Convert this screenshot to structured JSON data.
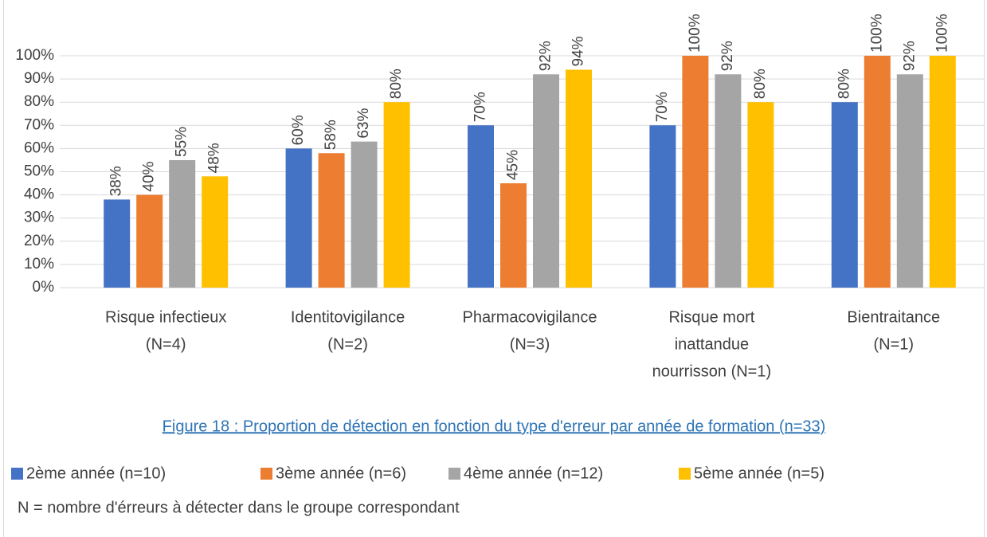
{
  "chart_data": {
    "type": "bar",
    "title": "Figure 18 : Proportion de détection en fonction du type d'erreur par année de formation (n=33)",
    "note": "N = nombre d'érreurs à détecter dans le groupe correspondant",
    "categories": [
      [
        "Risque infectieux",
        "(N=4)"
      ],
      [
        "Identitovigilance",
        "(N=2)"
      ],
      [
        "Pharmacovigilance",
        "(N=3)"
      ],
      [
        "Risque mort",
        "inattandue",
        "nourrisson (N=1)"
      ],
      [
        "Bientraitance",
        "(N=1)"
      ]
    ],
    "series": [
      {
        "name": "2ème année (n=10)",
        "color": "#4472C4",
        "values": [
          38,
          60,
          70,
          70,
          80
        ],
        "value_labels": [
          "38%",
          "60%",
          "70%",
          "70%",
          "80%"
        ]
      },
      {
        "name": "3ème année (n=6)",
        "color": "#ED7D31",
        "values": [
          40,
          58,
          45,
          100,
          100
        ],
        "value_labels": [
          "40%",
          "58%",
          "45%",
          "100%",
          "100%"
        ]
      },
      {
        "name": "4ème année (n=12)",
        "color": "#A5A5A5",
        "values": [
          55,
          63,
          92,
          92,
          92
        ],
        "value_labels": [
          "55%",
          "63%",
          "92%",
          "92%",
          "92%"
        ]
      },
      {
        "name": "5ème année (n=5)",
        "color": "#FFC000",
        "values": [
          48,
          80,
          94,
          80,
          100
        ],
        "value_labels": [
          "48%",
          "80%",
          "94%",
          "80%",
          "100%"
        ]
      }
    ],
    "ylim": [
      0,
      100
    ],
    "yticks": [
      {
        "value": 0,
        "label": "0%"
      },
      {
        "value": 10,
        "label": "10%"
      },
      {
        "value": 20,
        "label": "20%"
      },
      {
        "value": 30,
        "label": "30%"
      },
      {
        "value": 40,
        "label": "40%"
      },
      {
        "value": 50,
        "label": "50%"
      },
      {
        "value": 60,
        "label": "60%"
      },
      {
        "value": 70,
        "label": "70%"
      },
      {
        "value": 80,
        "label": "80%"
      },
      {
        "value": 90,
        "label": "90%"
      },
      {
        "value": 100,
        "label": "100%"
      }
    ],
    "grid": true
  }
}
